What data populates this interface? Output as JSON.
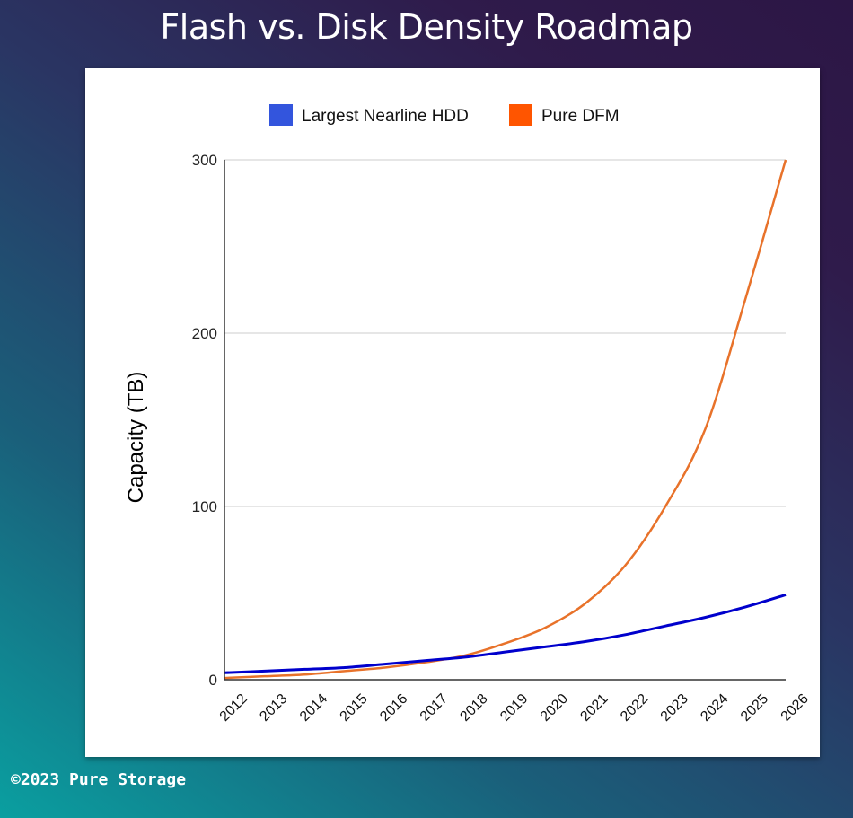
{
  "title": "Flash vs. Disk Density Roadmap",
  "footer": "©2023 Pure Storage",
  "chart_data": {
    "type": "line",
    "title": "",
    "xlabel": "",
    "ylabel": "Capacity (TB)",
    "ylim": [
      0,
      300
    ],
    "yticks": [
      "0",
      "100",
      "200",
      "300"
    ],
    "grid": true,
    "legend_position": "top",
    "categories": [
      "2012",
      "2013",
      "2014",
      "2015",
      "2016",
      "2017",
      "2018",
      "2019",
      "2020",
      "2021",
      "2022",
      "2023",
      "2024",
      "2025",
      "2026"
    ],
    "series": [
      {
        "name": "Largest Nearline HDD",
        "color": "#0000cc",
        "legend_color": "#3355dd",
        "values": [
          4,
          5,
          6,
          7,
          9,
          11,
          13,
          16,
          19,
          22,
          26,
          31,
          36,
          42,
          49
        ]
      },
      {
        "name": "Pure DFM",
        "color": "#e8722a",
        "legend_color": "#ff5500",
        "values": [
          1,
          2,
          3,
          5,
          7,
          10,
          14,
          21,
          30,
          44,
          66,
          100,
          145,
          220,
          300
        ]
      }
    ]
  }
}
